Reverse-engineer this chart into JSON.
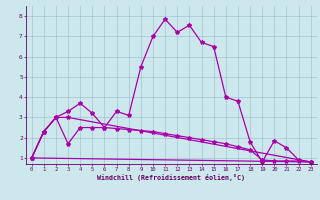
{
  "title": "",
  "xlabel": "Windchill (Refroidissement éolien,°C)",
  "bg_color": "#cce8ec",
  "line_color": "#aa00aa",
  "grid_color": "#99bbcc",
  "xlim": [
    -0.5,
    23.5
  ],
  "ylim": [
    0.7,
    8.5
  ],
  "xticks": [
    0,
    1,
    2,
    3,
    4,
    5,
    6,
    7,
    8,
    9,
    10,
    11,
    12,
    13,
    14,
    15,
    16,
    17,
    18,
    19,
    20,
    21,
    22,
    23
  ],
  "yticks": [
    1,
    2,
    3,
    4,
    5,
    6,
    7,
    8
  ],
  "curve1_x": [
    0,
    1,
    2,
    3,
    4,
    5,
    6,
    7,
    8,
    9,
    10,
    11,
    12,
    13,
    14,
    15,
    16,
    17,
    18,
    19,
    20,
    21,
    22,
    23
  ],
  "curve1_y": [
    1.0,
    2.3,
    3.0,
    3.3,
    3.7,
    3.2,
    2.5,
    3.3,
    3.1,
    5.5,
    7.0,
    7.85,
    7.2,
    7.55,
    6.7,
    6.5,
    4.0,
    3.8,
    1.8,
    0.8,
    1.85,
    1.5,
    0.9,
    0.8
  ],
  "curve2_x": [
    0,
    1,
    2,
    3,
    4,
    5,
    6,
    7,
    8,
    9,
    10,
    11,
    12,
    13,
    14,
    15,
    16,
    17,
    18,
    19,
    20,
    21,
    22,
    23
  ],
  "curve2_y": [
    1.0,
    2.3,
    3.0,
    1.7,
    2.5,
    2.5,
    2.5,
    2.45,
    2.4,
    2.35,
    2.3,
    2.2,
    2.1,
    2.0,
    1.9,
    1.8,
    1.7,
    1.55,
    1.4,
    0.9,
    0.85,
    0.85,
    0.85,
    0.8
  ],
  "curve3_x": [
    0,
    1,
    2,
    3,
    23
  ],
  "curve3_y": [
    1.0,
    2.3,
    3.0,
    3.0,
    0.8
  ],
  "curve4_x": [
    0,
    23
  ],
  "curve4_y": [
    1.0,
    0.8
  ]
}
